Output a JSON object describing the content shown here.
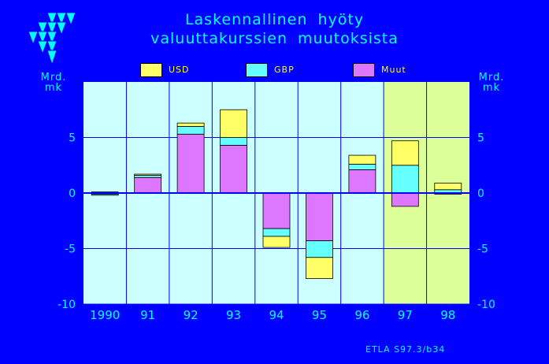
{
  "title": {
    "line1": "Laskennallinen hyöty",
    "line2": "valuuttakurssien muutoksista"
  },
  "source_note": "ETLA S97.3/b34",
  "colors": {
    "background": "#0000ff",
    "plot_background": "#ccffff",
    "forecast_background": "#ddff99",
    "text": "#00ffff",
    "legend_text": "#ffff00",
    "usd": "#ffff66",
    "gbp": "#66ffff",
    "muut": "#dd77ff"
  },
  "chart_data": {
    "type": "bar",
    "stacked": true,
    "title": "Laskennallinen hyöty valuuttakurssien muutoksista",
    "ylabel": "Mrd. mk",
    "ylabel_left": "Mrd. mk",
    "ylabel_right": "Mrd. mk",
    "ylim": [
      -10,
      10
    ],
    "yticks": [
      -10,
      -5,
      0,
      5
    ],
    "ytick_labels": [
      "-10",
      "-5",
      "0",
      "5"
    ],
    "grid": true,
    "legend_position": "top",
    "categories": [
      "1990",
      "91",
      "92",
      "93",
      "94",
      "95",
      "96",
      "97",
      "98"
    ],
    "shaded_categories": [
      "97",
      "98"
    ],
    "series": [
      {
        "name": "USD",
        "color": "#ffff66",
        "values": [
          0.1,
          0.1,
          0.3,
          2.5,
          -1.0,
          -1.9,
          0.8,
          2.2,
          0.6
        ]
      },
      {
        "name": "GBP",
        "color": "#66ffff",
        "values": [
          -0.1,
          0.2,
          0.7,
          0.7,
          -0.7,
          -1.5,
          0.5,
          2.5,
          0.3
        ]
      },
      {
        "name": "Muut",
        "color": "#dd77ff",
        "values": [
          -0.1,
          1.4,
          5.3,
          4.3,
          -3.2,
          -4.3,
          2.1,
          -1.2,
          -0.1
        ]
      }
    ]
  }
}
